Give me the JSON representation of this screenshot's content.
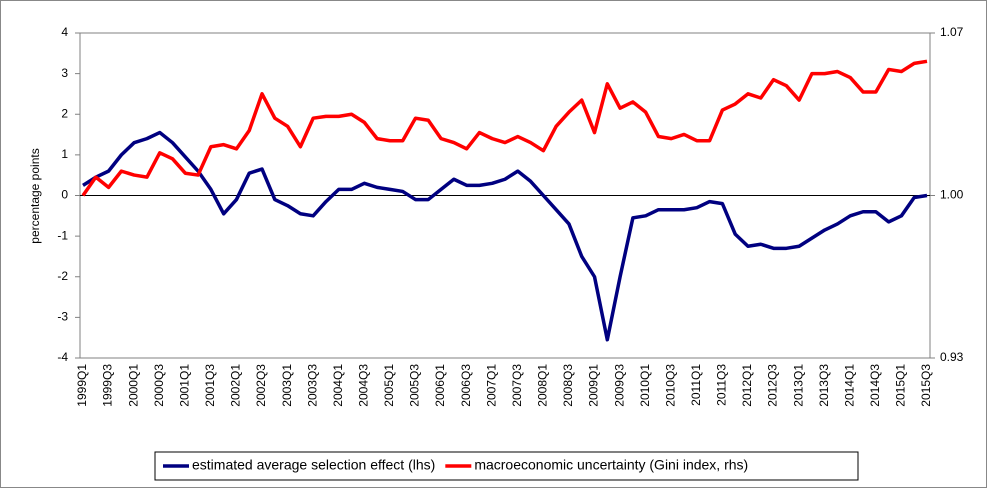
{
  "chart_data": {
    "type": "line",
    "categories": [
      "1999Q1",
      null,
      "1999Q3",
      null,
      "2000Q1",
      null,
      "2000Q3",
      null,
      "2001Q1",
      null,
      "2001Q3",
      null,
      "2002Q1",
      null,
      "2002Q3",
      null,
      "2003Q1",
      null,
      "2003Q3",
      null,
      "2004Q1",
      null,
      "2004Q3",
      null,
      "2005Q1",
      null,
      "2005Q3",
      null,
      "2006Q1",
      null,
      "2006Q3",
      null,
      "2007Q1",
      null,
      "2007Q3",
      null,
      "2008Q1",
      null,
      "2008Q3",
      null,
      "2009Q1",
      null,
      "2009Q3",
      null,
      "2010Q1",
      null,
      "2010Q3",
      null,
      "2011Q1",
      null,
      "2011Q3",
      null,
      "2012Q1",
      null,
      "2012Q3",
      null,
      "2013Q1",
      null,
      "2013Q3",
      null,
      "2014Q1",
      null,
      "2014Q3",
      null,
      "2015Q1",
      null,
      "2015Q3"
    ],
    "y_label": "percentage points",
    "ylim": [
      -4,
      4
    ],
    "yticks": [
      -4,
      -3,
      -2,
      -1,
      0,
      1,
      2,
      3,
      4
    ],
    "y2lim": [
      0.93,
      1.07
    ],
    "y2ticks": [
      0.93,
      {
        "value": 1,
        "label": "1.00"
      },
      1.07
    ],
    "legend": "bottom",
    "series": [
      {
        "name": "estimated average selection effect (lhs)",
        "color": "#000080",
        "values": [
          0.25,
          0.45,
          0.6,
          1.0,
          1.3,
          1.4,
          1.55,
          1.3,
          0.95,
          0.6,
          0.15,
          -0.45,
          -0.1,
          0.55,
          0.65,
          -0.1,
          -0.25,
          -0.45,
          -0.5,
          -0.15,
          0.15,
          0.15,
          0.3,
          0.2,
          0.15,
          0.1,
          -0.1,
          -0.1,
          0.15,
          0.4,
          0.25,
          0.25,
          0.3,
          0.4,
          0.6,
          0.35,
          0,
          -0.35,
          -0.7,
          -1.5,
          -2.0,
          -3.55,
          -2.0,
          -0.55,
          -0.5,
          -0.35,
          -0.35,
          -0.35,
          -0.3,
          -0.15,
          -0.2,
          -0.95,
          -1.25,
          -1.2,
          -1.3,
          -1.3,
          -1.25,
          -1.05,
          -0.85,
          -0.7,
          -0.5,
          -0.4,
          -0.4,
          -0.65,
          -0.5,
          -0.05,
          0
        ]
      },
      {
        "name": "macroeconomic uncertainty (Gini index, rhs)",
        "color": "#ff0000",
        "axis": "y2",
        "values": [
          1.0,
          1.0079,
          1.0035,
          1.0105,
          1.0088,
          1.0079,
          1.0184,
          1.0158,
          1.0096,
          1.0088,
          1.021,
          1.0219,
          1.0201,
          1.028,
          1.0438,
          1.0333,
          1.0298,
          1.021,
          1.0333,
          1.0341,
          1.0341,
          1.035,
          1.0315,
          1.0245,
          1.0236,
          1.0236,
          1.0333,
          1.0324,
          1.0245,
          1.0228,
          1.0201,
          1.0271,
          1.0245,
          1.0228,
          1.0254,
          1.0228,
          1.0193,
          1.0298,
          1.0359,
          1.0411,
          1.0271,
          1.0481,
          1.0376,
          1.0403,
          1.0359,
          1.0254,
          1.0245,
          1.0263,
          1.0236,
          1.0236,
          1.0368,
          1.0394,
          1.0438,
          1.042,
          1.0499,
          1.0473,
          1.0411,
          1.0525,
          1.0525,
          1.0534,
          1.0508,
          1.0446,
          1.0446,
          1.0543,
          1.0534,
          1.0569,
          1.0578
        ]
      }
    ]
  }
}
